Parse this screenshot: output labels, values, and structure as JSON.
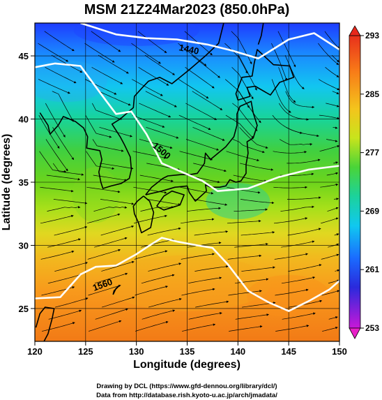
{
  "title": "MSM 21Z24Mar2023 (850.0hPa)",
  "xlabel": "Longitude (degrees)",
  "ylabel": "Latitude  (degrees)",
  "credit_line1": "Drawing by DCL (https://www.gfd-dennou.org/library/dcl/)",
  "credit_line2": "Data from http://database.rish.kyoto-u.ac.jp/arch/jmadata/",
  "contour_labels": [
    "1440",
    "1500",
    "1560"
  ],
  "colorbar_ticks": [
    "293",
    "285",
    "277",
    "269",
    "261",
    "253"
  ],
  "chart_data": {
    "type": "heatmap",
    "variable": "temperature (K) with streamlines and geopotential height contours",
    "x_ticks": [
      120,
      125,
      130,
      135,
      140,
      145,
      150
    ],
    "y_ticks": [
      25,
      30,
      35,
      40,
      45
    ],
    "xlim": [
      120,
      150
    ],
    "ylim": [
      22.4,
      47.6
    ],
    "colorbar": {
      "min": 253,
      "max": 293,
      "ticks": [
        293,
        285,
        277,
        269,
        261,
        253
      ]
    },
    "contours": [
      {
        "label": "1440",
        "points": [
          [
            124.5,
            47.6
          ],
          [
            128,
            46.7
          ],
          [
            131,
            46.4
          ],
          [
            134,
            46.3
          ],
          [
            137,
            45.9
          ],
          [
            139.5,
            45.4
          ],
          [
            142,
            44.8
          ],
          [
            145,
            46.3
          ],
          [
            147.5,
            46.8
          ],
          [
            150,
            45.5
          ]
        ]
      },
      {
        "label": "1500",
        "points": [
          [
            120,
            44.1
          ],
          [
            122,
            44.4
          ],
          [
            124.5,
            44.2
          ],
          [
            126.5,
            42
          ],
          [
            128,
            40.4
          ],
          [
            129.5,
            40.6
          ],
          [
            131,
            38.8
          ],
          [
            132.5,
            36.5
          ],
          [
            134.5,
            35.8
          ],
          [
            136.5,
            35.1
          ],
          [
            138,
            34.3
          ],
          [
            141,
            34.5
          ],
          [
            144,
            35.4
          ],
          [
            147,
            36
          ],
          [
            150,
            36.3
          ]
        ]
      },
      {
        "label": "1560",
        "points": [
          [
            120,
            25.8
          ],
          [
            122.5,
            25.9
          ],
          [
            124.5,
            27.7
          ],
          [
            126,
            28.3
          ],
          [
            128,
            28.4
          ],
          [
            130,
            29.3
          ],
          [
            131.5,
            30.1
          ],
          [
            132.5,
            30.6
          ],
          [
            134,
            30.3
          ],
          [
            136,
            30
          ],
          [
            137.5,
            29.8
          ],
          [
            139,
            28.5
          ],
          [
            141,
            26.4
          ],
          [
            143,
            25.5
          ],
          [
            145,
            24.8
          ],
          [
            147,
            25.6
          ],
          [
            149,
            26.5
          ],
          [
            150,
            27.2
          ]
        ]
      }
    ],
    "coastlines": [
      [
        [
          120.5,
          40.5
        ],
        [
          121.3,
          39.5
        ],
        [
          121.5,
          38.8
        ],
        [
          122.3,
          39.5
        ],
        [
          122.8,
          40.2
        ],
        [
          124,
          39.8
        ],
        [
          124.8,
          39.3
        ],
        [
          125.2,
          38.6
        ],
        [
          125.1,
          37.7
        ],
        [
          126.4,
          37.5
        ],
        [
          126.6,
          36.8
        ],
        [
          126.3,
          35.8
        ],
        [
          126.5,
          35.0
        ],
        [
          126.7,
          34.5
        ],
        [
          127.5,
          34.7
        ],
        [
          128.5,
          34.9
        ],
        [
          129.3,
          35.3
        ],
        [
          129.5,
          36.0
        ],
        [
          129.4,
          37.0
        ],
        [
          128.8,
          38.0
        ],
        [
          128.4,
          38.6
        ],
        [
          127.6,
          39.6
        ],
        [
          128.4,
          40.0
        ],
        [
          129.7,
          40.9
        ],
        [
          129.8,
          41.8
        ],
        [
          130.6,
          42.5
        ],
        [
          131.2,
          43.0
        ],
        [
          132.3,
          43.3
        ],
        [
          133.5,
          42.8
        ],
        [
          135.2,
          43.9
        ],
        [
          136.8,
          45.0
        ],
        [
          138.1,
          46.0
        ],
        [
          138.6,
          47.6
        ]
      ],
      [
        [
          130.7,
          33.9
        ],
        [
          131.3,
          33.5
        ],
        [
          131.7,
          32.6
        ],
        [
          131.4,
          31.4
        ],
        [
          130.5,
          31.0
        ],
        [
          130.2,
          31.8
        ],
        [
          129.8,
          32.5
        ],
        [
          129.7,
          33.1
        ],
        [
          130.1,
          33.5
        ],
        [
          130.7,
          33.9
        ]
      ],
      [
        [
          132.0,
          33.1
        ],
        [
          132.7,
          32.8
        ],
        [
          134.3,
          33.2
        ],
        [
          134.7,
          34.0
        ],
        [
          133.5,
          34.3
        ],
        [
          132.7,
          33.9
        ],
        [
          132.0,
          33.1
        ]
      ],
      [
        [
          130.9,
          34.0
        ],
        [
          132.5,
          34.3
        ],
        [
          133.8,
          34.6
        ],
        [
          135.0,
          34.7
        ],
        [
          135.2,
          34.2
        ],
        [
          135.8,
          33.5
        ],
        [
          136.9,
          34.3
        ],
        [
          136.8,
          34.8
        ],
        [
          137.3,
          34.6
        ],
        [
          138.2,
          34.6
        ],
        [
          138.8,
          34.7
        ],
        [
          139.2,
          35.2
        ],
        [
          139.8,
          35.0
        ],
        [
          140.3,
          35.1
        ],
        [
          140.8,
          35.7
        ],
        [
          140.8,
          36.4
        ],
        [
          141.0,
          37.3
        ],
        [
          140.9,
          38.2
        ],
        [
          141.5,
          38.5
        ],
        [
          141.9,
          39.5
        ],
        [
          141.5,
          40.5
        ],
        [
          141.3,
          41.4
        ],
        [
          140.2,
          41.0
        ],
        [
          139.9,
          40.4
        ],
        [
          139.9,
          39.5
        ],
        [
          139.6,
          38.6
        ],
        [
          138.8,
          37.8
        ],
        [
          137.3,
          36.8
        ],
        [
          136.8,
          37.3
        ],
        [
          136.7,
          36.5
        ],
        [
          136.0,
          35.7
        ],
        [
          135.3,
          35.6
        ],
        [
          134.4,
          35.6
        ],
        [
          133.1,
          35.5
        ],
        [
          132.6,
          35.3
        ],
        [
          131.5,
          34.6
        ],
        [
          130.9,
          34.0
        ]
      ],
      [
        [
          140.0,
          41.5
        ],
        [
          141.2,
          41.8
        ],
        [
          140.9,
          42.5
        ],
        [
          141.7,
          42.6
        ],
        [
          143.2,
          41.9
        ],
        [
          144.1,
          42.9
        ],
        [
          145.5,
          43.3
        ],
        [
          145.1,
          44.2
        ],
        [
          143.5,
          44.3
        ],
        [
          141.9,
          45.5
        ],
        [
          141.6,
          44.4
        ],
        [
          141.4,
          43.4
        ],
        [
          140.4,
          43.3
        ],
        [
          139.8,
          42.0
        ],
        [
          140.0,
          41.5
        ]
      ],
      [
        [
          142.0,
          45.9
        ],
        [
          142.3,
          46.6
        ],
        [
          142.5,
          47.6
        ]
      ],
      [
        [
          120.1,
          23.5
        ],
        [
          120.5,
          24.6
        ],
        [
          121.0,
          25.1
        ],
        [
          121.9,
          25.0
        ],
        [
          121.7,
          24.2
        ],
        [
          121.3,
          23.0
        ],
        [
          120.9,
          22.4
        ]
      ],
      [
        [
          127.7,
          26.1
        ],
        [
          128.0,
          26.6
        ],
        [
          128.3,
          26.8
        ],
        [
          127.8,
          26.4
        ],
        [
          127.7,
          26.1
        ]
      ]
    ]
  }
}
